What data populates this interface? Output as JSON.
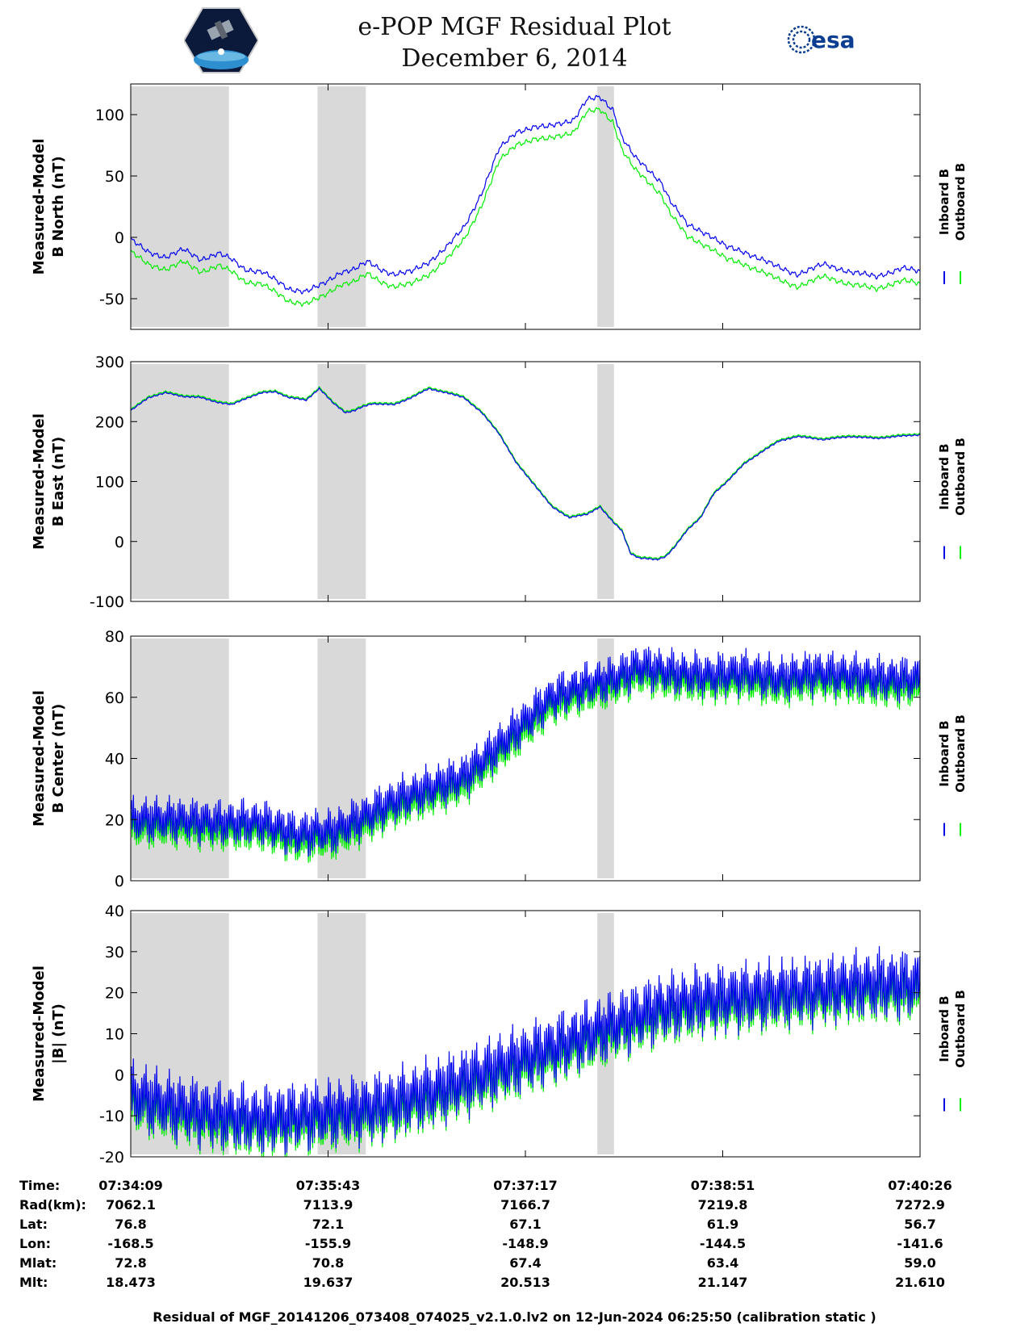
{
  "header": {
    "title": "e-POP MGF Residual Plot",
    "date": "December 6, 2014",
    "logo_left": "cassiope-mission-logo",
    "logo_right_text": "esa"
  },
  "colors": {
    "inboard": "#0000ee",
    "outboard": "#00ee00",
    "shade": "#d9d9d9"
  },
  "chart_data": [
    {
      "type": "line",
      "name": "panel-b-north",
      "ylabel": [
        "Measured-Model",
        "B North (nT)"
      ],
      "ylim": [
        -75,
        125
      ],
      "yticks": [
        -50,
        0,
        50,
        100
      ],
      "legend": [
        "Inboard B",
        "Outboard B"
      ],
      "legend_position": "right",
      "series": [
        {
          "name": "Inboard B",
          "x": [
            0,
            20,
            40,
            60,
            80,
            100,
            115,
            130,
            150,
            165,
            180,
            200,
            220,
            240,
            255,
            270,
            285,
            300,
            320,
            340,
            360,
            380,
            400,
            420,
            440,
            460,
            475,
            490,
            505,
            520,
            535,
            550,
            560,
            575,
            590,
            605,
            615,
            625,
            635,
            645,
            660,
            680,
            700,
            720,
            740,
            760,
            790,
            820,
            850,
            880,
            900
          ],
          "y": [
            -2,
            -12,
            -16,
            -10,
            -18,
            -13,
            -18,
            -26,
            -28,
            -35,
            -42,
            -44,
            -38,
            -28,
            -26,
            -20,
            -26,
            -30,
            -28,
            -20,
            -8,
            8,
            36,
            72,
            86,
            90,
            90,
            93,
            96,
            112,
            114,
            104,
            82,
            65,
            55,
            45,
            30,
            20,
            10,
            7,
            2,
            -8,
            -12,
            -18,
            -25,
            -30,
            -22,
            -28,
            -32,
            -25,
            -28
          ],
          "amp": 2.5,
          "freq": 0.35
        },
        {
          "name": "Outboard B",
          "x": [
            0,
            20,
            40,
            60,
            80,
            100,
            115,
            130,
            150,
            165,
            180,
            200,
            220,
            240,
            255,
            270,
            285,
            300,
            320,
            340,
            360,
            380,
            400,
            420,
            440,
            460,
            475,
            490,
            505,
            520,
            535,
            550,
            560,
            575,
            590,
            605,
            615,
            625,
            635,
            645,
            660,
            680,
            700,
            720,
            740,
            760,
            790,
            820,
            850,
            880,
            900
          ],
          "y": [
            -12,
            -22,
            -26,
            -20,
            -28,
            -23,
            -28,
            -36,
            -38,
            -45,
            -52,
            -54,
            -48,
            -38,
            -36,
            -30,
            -36,
            -40,
            -38,
            -30,
            -18,
            -2,
            26,
            62,
            76,
            80,
            80,
            83,
            86,
            102,
            104,
            94,
            72,
            55,
            45,
            35,
            20,
            10,
            0,
            -3,
            -8,
            -18,
            -22,
            -28,
            -35,
            -40,
            -32,
            -38,
            -42,
            -35,
            -38
          ],
          "amp": 2.5,
          "freq": 0.35
        }
      ]
    },
    {
      "type": "line",
      "name": "panel-b-east",
      "ylabel": [
        "Measured-Model",
        "B East (nT)"
      ],
      "ylim": [
        -100,
        300
      ],
      "yticks": [
        -100,
        0,
        100,
        200,
        300
      ],
      "legend": [
        "Inboard B",
        "Outboard B"
      ],
      "legend_position": "right",
      "series": [
        {
          "name": "Inboard B",
          "x": [
            0,
            20,
            40,
            60,
            80,
            100,
            115,
            130,
            150,
            165,
            180,
            200,
            215,
            230,
            245,
            255,
            265,
            275,
            300,
            320,
            340,
            360,
            380,
            400,
            420,
            440,
            460,
            480,
            500,
            520,
            535,
            550,
            560,
            570,
            580,
            600,
            610,
            620,
            635,
            650,
            665,
            680,
            700,
            720,
            740,
            760,
            790,
            820,
            850,
            880,
            900
          ],
          "y": [
            218,
            240,
            248,
            242,
            240,
            232,
            228,
            238,
            248,
            250,
            240,
            236,
            255,
            232,
            215,
            218,
            225,
            230,
            228,
            240,
            255,
            248,
            240,
            215,
            180,
            130,
            95,
            58,
            40,
            45,
            58,
            32,
            18,
            -20,
            -28,
            -30,
            -25,
            -10,
            20,
            40,
            80,
            100,
            130,
            150,
            168,
            175,
            170,
            175,
            172,
            176,
            178
          ],
          "amp": 1.5,
          "freq": 0.5
        },
        {
          "name": "Outboard B",
          "x": [
            0,
            20,
            40,
            60,
            80,
            100,
            115,
            130,
            150,
            165,
            180,
            200,
            215,
            230,
            245,
            255,
            265,
            275,
            300,
            320,
            340,
            360,
            380,
            400,
            420,
            440,
            460,
            480,
            500,
            520,
            535,
            550,
            560,
            570,
            580,
            600,
            610,
            620,
            635,
            650,
            665,
            680,
            700,
            720,
            740,
            760,
            790,
            820,
            850,
            880,
            900
          ],
          "y": [
            220,
            242,
            250,
            244,
            242,
            234,
            230,
            240,
            250,
            252,
            242,
            238,
            257,
            234,
            217,
            220,
            227,
            232,
            230,
            242,
            257,
            250,
            242,
            217,
            182,
            132,
            97,
            60,
            42,
            47,
            60,
            34,
            20,
            -18,
            -26,
            -28,
            -23,
            -8,
            22,
            42,
            82,
            102,
            132,
            152,
            170,
            177,
            172,
            177,
            174,
            178,
            180
          ],
          "amp": 1.5,
          "freq": 0.5
        }
      ]
    },
    {
      "type": "line",
      "name": "panel-b-center",
      "ylabel": [
        "Measured-Model",
        "B Center (nT)"
      ],
      "ylim": [
        0,
        80
      ],
      "yticks": [
        0,
        20,
        40,
        60,
        80
      ],
      "legend": [
        "Inboard B",
        "Outboard B"
      ],
      "legend_position": "right",
      "series": [
        {
          "name": "Inboard B",
          "x": [
            0,
            50,
            100,
            150,
            170,
            190,
            210,
            230,
            260,
            300,
            340,
            380,
            420,
            450,
            480,
            520,
            550,
            580,
            620,
            660,
            700,
            740,
            780,
            820,
            860,
            900
          ],
          "y": [
            20,
            20,
            19,
            19,
            17,
            15,
            16,
            16,
            20,
            26,
            30,
            34,
            44,
            52,
            60,
            64,
            66,
            70,
            68,
            67,
            68,
            66,
            68,
            67,
            66,
            66
          ],
          "amp": 8,
          "freq": 1.3
        },
        {
          "name": "Outboard B",
          "x": [
            0,
            50,
            100,
            150,
            170,
            190,
            210,
            230,
            260,
            300,
            340,
            380,
            420,
            450,
            480,
            520,
            550,
            580,
            620,
            660,
            700,
            740,
            780,
            820,
            860,
            900
          ],
          "y": [
            17,
            17,
            16,
            16,
            14,
            12,
            13,
            13,
            17,
            23,
            27,
            31,
            41,
            49,
            57,
            61,
            63,
            67,
            65,
            64,
            65,
            63,
            65,
            64,
            63,
            63
          ],
          "amp": 7,
          "freq": 1.3
        }
      ]
    },
    {
      "type": "line",
      "name": "panel-b-magnitude",
      "ylabel": [
        "Measured-Model",
        "|B| (nT)"
      ],
      "ylim": [
        -20,
        40
      ],
      "yticks": [
        -20,
        -10,
        0,
        10,
        20,
        30,
        40
      ],
      "legend": [
        "Inboard B",
        "Outboard B"
      ],
      "legend_position": "right",
      "series": [
        {
          "name": "Inboard B",
          "x": [
            0,
            50,
            100,
            150,
            200,
            250,
            300,
            350,
            400,
            450,
            500,
            550,
            600,
            650,
            700,
            750,
            800,
            850,
            900
          ],
          "y": [
            -5,
            -8,
            -10,
            -11,
            -10,
            -9,
            -7,
            -4,
            0,
            4,
            8,
            12,
            16,
            18,
            19,
            20,
            21,
            22,
            22
          ],
          "amp": 9,
          "freq": 1.3
        },
        {
          "name": "Outboard B",
          "x": [
            0,
            50,
            100,
            150,
            200,
            250,
            300,
            350,
            400,
            450,
            500,
            550,
            600,
            650,
            700,
            750,
            800,
            850,
            900
          ],
          "y": [
            -7,
            -10,
            -12,
            -13,
            -12,
            -11,
            -9,
            -6,
            -2,
            2,
            6,
            10,
            14,
            16,
            17,
            18,
            19,
            20,
            20
          ],
          "amp": 8,
          "freq": 1.3
        }
      ]
    }
  ],
  "shaded_intervals_seconds": [
    [
      0,
      112
    ],
    [
      213,
      268
    ],
    [
      532,
      551
    ]
  ],
  "time_axis": {
    "range_seconds": [
      0,
      900
    ],
    "tick_seconds": [
      0,
      225,
      450,
      675,
      900
    ]
  },
  "ephemeris": {
    "labels": [
      "Time:",
      "Rad(km):",
      "Lat:",
      "Lon:",
      "Mlat:",
      "Mlt:"
    ],
    "columns": [
      [
        "07:34:09",
        "7062.1",
        "76.8",
        "-168.5",
        "72.8",
        "18.473"
      ],
      [
        "07:35:43",
        "7113.9",
        "72.1",
        "-155.9",
        "70.8",
        "19.637"
      ],
      [
        "07:37:17",
        "7166.7",
        "67.1",
        "-148.9",
        "67.4",
        "20.513"
      ],
      [
        "07:38:51",
        "7219.8",
        "61.9",
        "-144.5",
        "63.4",
        "21.147"
      ],
      [
        "07:40:26",
        "7272.9",
        "56.7",
        "-141.6",
        "59.0",
        "21.610"
      ]
    ]
  },
  "footer": "Residual of MGF_20141206_073408_074025_v2.1.0.lv2 on 12-Jun-2024 06:25:50 (calibration static )"
}
